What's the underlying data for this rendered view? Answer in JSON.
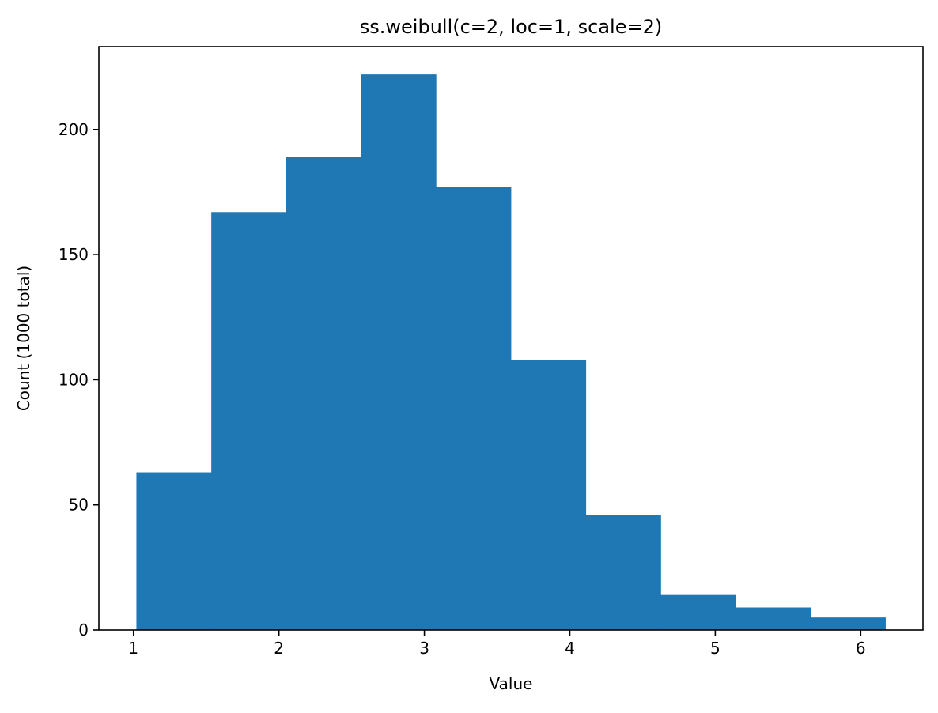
{
  "chart_data": {
    "type": "bar",
    "title": "ss.weibull(c=2, loc=1, scale=2)",
    "xlabel": "Value",
    "ylabel": "Count (1000 total)",
    "bins": [
      {
        "x0": 1.02,
        "x1": 1.535,
        "count": 63
      },
      {
        "x0": 1.535,
        "x1": 2.05,
        "count": 167
      },
      {
        "x0": 2.05,
        "x1": 2.565,
        "count": 189
      },
      {
        "x0": 2.565,
        "x1": 3.08,
        "count": 222
      },
      {
        "x0": 3.08,
        "x1": 3.595,
        "count": 177
      },
      {
        "x0": 3.595,
        "x1": 4.11,
        "count": 108
      },
      {
        "x0": 4.11,
        "x1": 4.625,
        "count": 46
      },
      {
        "x0": 4.625,
        "x1": 5.14,
        "count": 14
      },
      {
        "x0": 5.14,
        "x1": 5.655,
        "count": 9
      },
      {
        "x0": 5.655,
        "x1": 6.17,
        "count": 5
      }
    ],
    "xlim": [
      0.762,
      6.428
    ],
    "ylim": [
      0,
      233.1
    ],
    "x_ticks": [
      1,
      2,
      3,
      4,
      5,
      6
    ],
    "y_ticks": [
      0,
      50,
      100,
      150,
      200
    ],
    "bar_color": "#1f77b4",
    "grid": false,
    "legend": "none"
  }
}
